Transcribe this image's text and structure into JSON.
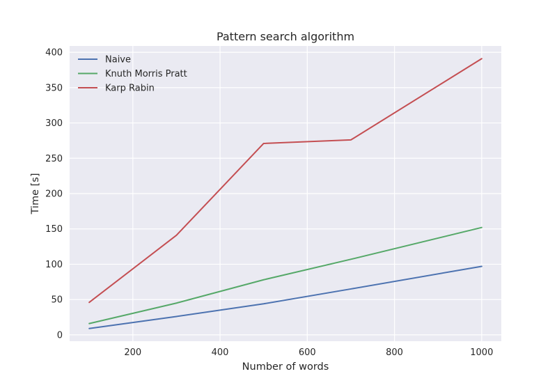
{
  "chart_data": {
    "type": "line",
    "title": "Pattern search algorithm",
    "xlabel": "Number of words",
    "ylabel": "Time [s]",
    "x": [
      100,
      300,
      500,
      700,
      1000
    ],
    "xlim": [
      55,
      1045
    ],
    "ylim": [
      -9,
      409
    ],
    "xticks": [
      200,
      400,
      600,
      800,
      1000
    ],
    "yticks": [
      0,
      50,
      100,
      150,
      200,
      250,
      300,
      350,
      400
    ],
    "grid": true,
    "legend_position": "top-left",
    "background_color": "#eaeaf2",
    "grid_color": "#ffffff",
    "series": [
      {
        "name": "Naive",
        "color": "#4c72b0",
        "values": [
          9,
          26,
          44,
          65,
          97
        ]
      },
      {
        "name": "Knuth Morris Pratt",
        "color": "#55a868",
        "values": [
          16,
          45,
          78,
          107,
          152
        ]
      },
      {
        "name": "Karp Rabin",
        "color": "#c44e52",
        "values": [
          46,
          141,
          271,
          276,
          391
        ]
      }
    ]
  }
}
